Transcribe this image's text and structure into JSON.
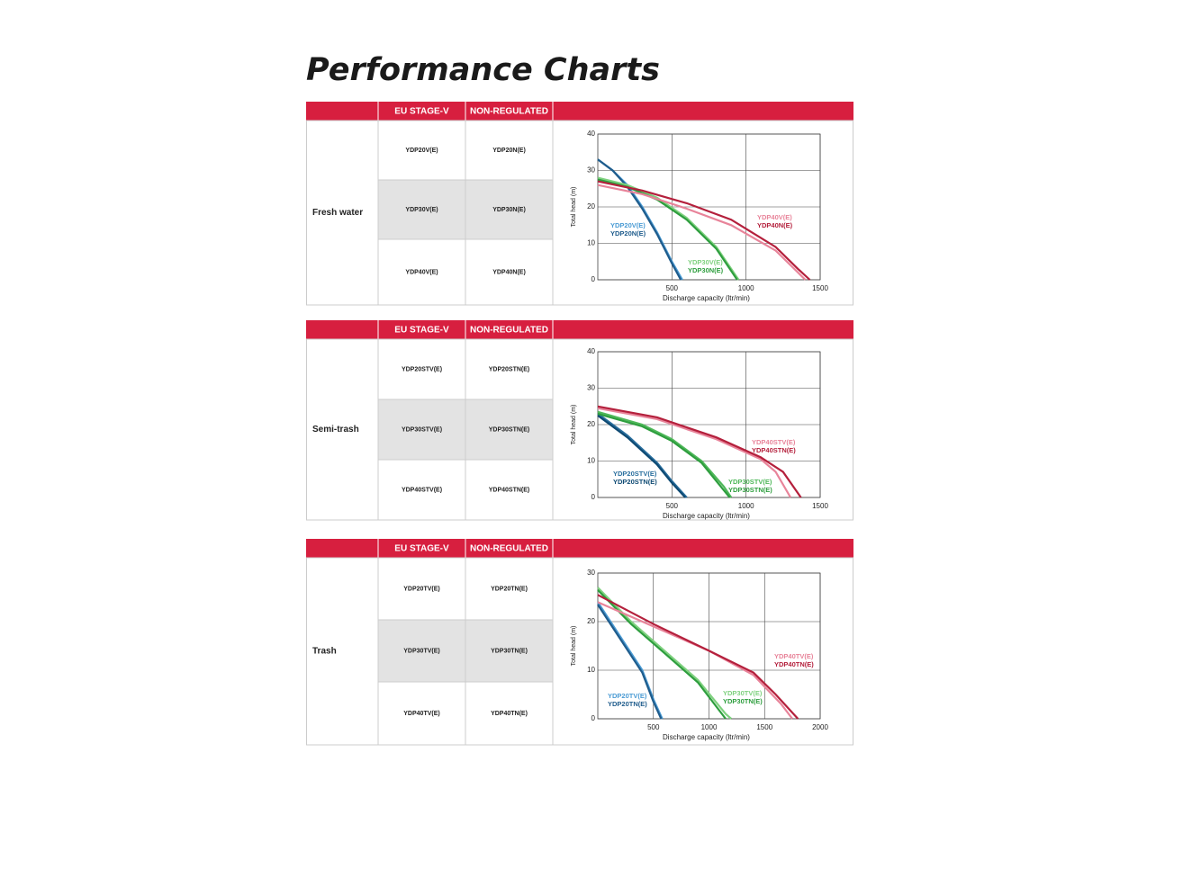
{
  "title": "Performance Charts",
  "sections": [
    {
      "header": [
        "EU STAGE-V",
        "NON-REGULATED"
      ],
      "label": "Fresh water",
      "rows": [
        [
          "YDP20V(E)",
          "YDP20N(E)"
        ],
        [
          "YDP30V(E)",
          "YDP30N(E)"
        ],
        [
          "YDP40V(E)",
          "YDP40N(E)"
        ]
      ],
      "chart_data": {
        "type": "line",
        "x_label": "Discharge capacity (ltr/min)",
        "y_label": "Total head (m)",
        "xlim": [
          0,
          1500
        ],
        "xticks": [
          500,
          1000,
          1500
        ],
        "ylim": [
          0,
          40
        ],
        "yticks": [
          0,
          10,
          20,
          30,
          40
        ],
        "grid": true,
        "series": [
          {
            "name": "YDP20V(E)",
            "color": "#4a9bd4",
            "x": [
              0,
              100,
              200,
              300,
              400,
              500,
              570
            ],
            "values": [
              33,
              30,
              26,
              20,
              13,
              5,
              0
            ]
          },
          {
            "name": "YDP20N(E)",
            "color": "#1f5c8c",
            "x": [
              0,
              100,
              200,
              300,
              400,
              500,
              560
            ],
            "values": [
              33,
              30,
              25.5,
              19.5,
              12.5,
              4.5,
              0
            ]
          },
          {
            "name": "YDP30V(E)",
            "color": "#7fd17f",
            "x": [
              0,
              200,
              400,
              600,
              800,
              950
            ],
            "values": [
              28,
              26,
              22.5,
              17,
              9,
              0
            ]
          },
          {
            "name": "YDP30N(E)",
            "color": "#2e9e3e",
            "x": [
              0,
              200,
              400,
              600,
              800,
              940
            ],
            "values": [
              27.5,
              25.5,
              22,
              16.5,
              8.5,
              0
            ]
          },
          {
            "name": "YDP40V(E)",
            "color": "#e8849a",
            "x": [
              0,
              300,
              600,
              900,
              1200,
              1350,
              1400
            ],
            "values": [
              26,
              23.5,
              19.5,
              15,
              8,
              2,
              0
            ]
          },
          {
            "name": "YDP40N(E)",
            "color": "#b4203c",
            "x": [
              0,
              300,
              600,
              900,
              1200,
              1350,
              1430
            ],
            "values": [
              27,
              24.5,
              21,
              16.5,
              9,
              3,
              0
            ]
          }
        ]
      }
    },
    {
      "header": [
        "EU STAGE-V",
        "NON-REGULATED"
      ],
      "label": "Semi-trash",
      "rows": [
        [
          "YDP20STV(E)",
          "YDP20STN(E)"
        ],
        [
          "YDP30STV(E)",
          "YDP30STN(E)"
        ],
        [
          "YDP40STV(E)",
          "YDP40STN(E)"
        ]
      ],
      "chart_data": {
        "type": "line",
        "x_label": "Discharge capacity (ltr/min)",
        "y_label": "Total head (m)",
        "xlim": [
          0,
          1500
        ],
        "xticks": [
          500,
          1000,
          1500
        ],
        "ylim": [
          0,
          40
        ],
        "yticks": [
          0,
          10,
          20,
          30,
          40
        ],
        "grid": true,
        "series": [
          {
            "name": "YDP20STV(E)",
            "color": "#2a6f9e",
            "x": [
              0,
              200,
              400,
              500,
              600
            ],
            "values": [
              23,
              17,
              9.5,
              4.5,
              0
            ]
          },
          {
            "name": "YDP20STN(E)",
            "color": "#0e4a73",
            "x": [
              0,
              200,
              400,
              500,
              590
            ],
            "values": [
              22.5,
              16.5,
              9,
              4,
              0
            ]
          },
          {
            "name": "YDP30STV(E)",
            "color": "#4fb85a",
            "x": [
              0,
              300,
              500,
              700,
              850,
              900
            ],
            "values": [
              23.5,
              20,
              16,
              10,
              3,
              0
            ]
          },
          {
            "name": "YDP30STN(E)",
            "color": "#2e9e3e",
            "x": [
              0,
              300,
              500,
              700,
              840,
              890
            ],
            "values": [
              23,
              19.5,
              15.5,
              9.5,
              2.5,
              0
            ]
          },
          {
            "name": "YDP40STV(E)",
            "color": "#e8849a",
            "x": [
              0,
              400,
              800,
              1100,
              1200,
              1300
            ],
            "values": [
              24.5,
              21.5,
              16,
              10.5,
              7,
              0
            ]
          },
          {
            "name": "YDP40STN(E)",
            "color": "#b4203c",
            "x": [
              0,
              400,
              800,
              1100,
              1250,
              1370
            ],
            "values": [
              25,
              22,
              16.5,
              11,
              7,
              0
            ]
          }
        ]
      }
    },
    {
      "header": [
        "EU STAGE-V",
        "NON-REGULATED"
      ],
      "label": "Trash",
      "rows": [
        [
          "YDP20TV(E)",
          "YDP20TN(E)"
        ],
        [
          "YDP30TV(E)",
          "YDP30TN(E)"
        ],
        [
          "YDP40TV(E)",
          "YDP40TN(E)"
        ]
      ],
      "chart_data": {
        "type": "line",
        "x_label": "Discharge capacity (ltr/min)",
        "y_label": "Total head (m)",
        "xlim": [
          0,
          2000
        ],
        "xticks": [
          500,
          1000,
          1500,
          2000
        ],
        "ylim": [
          0,
          30
        ],
        "yticks": [
          0,
          10,
          20,
          30
        ],
        "grid": true,
        "series": [
          {
            "name": "YDP20TV(E)",
            "color": "#4a9bd4",
            "x": [
              0,
              200,
              400,
              500,
              580
            ],
            "values": [
              24,
              17,
              10,
              4,
              0
            ]
          },
          {
            "name": "YDP20TN(E)",
            "color": "#1f5c8c",
            "x": [
              0,
              200,
              400,
              500,
              570
            ],
            "values": [
              23.5,
              16.5,
              9.5,
              3.5,
              0
            ]
          },
          {
            "name": "YDP30TV(E)",
            "color": "#7fd17f",
            "x": [
              0,
              300,
              600,
              900,
              1150,
              1200
            ],
            "values": [
              27,
              20,
              14,
              8,
              1,
              0
            ]
          },
          {
            "name": "YDP30TN(E)",
            "color": "#2e9e3e",
            "x": [
              0,
              300,
              600,
              900,
              1150
            ],
            "values": [
              26.5,
              19.5,
              13.5,
              7.5,
              0
            ]
          },
          {
            "name": "YDP40TV(E)",
            "color": "#e8849a",
            "x": [
              0,
              500,
              1000,
              1400,
              1650,
              1750
            ],
            "values": [
              24,
              19,
              14,
              9,
              3,
              0
            ]
          },
          {
            "name": "YDP40TN(E)",
            "color": "#b4203c",
            "x": [
              0,
              500,
              1000,
              1400,
              1600,
              1800
            ],
            "values": [
              25.5,
              19.5,
              14,
              9.5,
              5,
              0
            ]
          }
        ]
      }
    }
  ]
}
